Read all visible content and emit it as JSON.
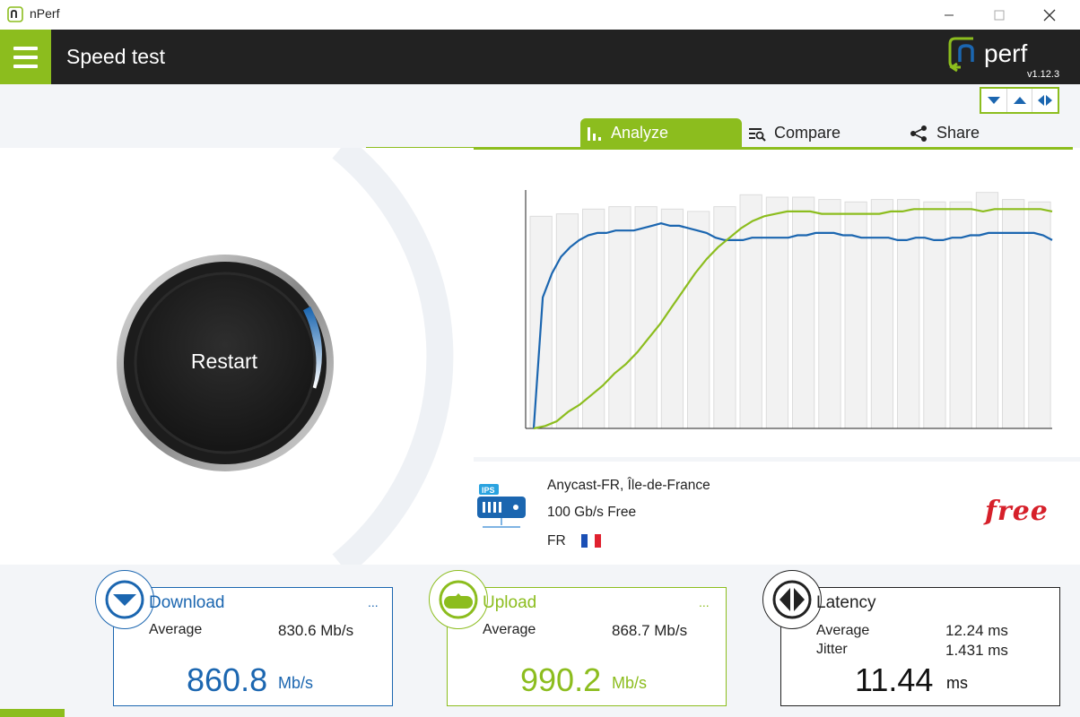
{
  "window": {
    "title": "nPerf",
    "min_icon": "minimize-icon",
    "max_icon": "maximize-icon",
    "close_icon": "close-icon"
  },
  "header": {
    "title": "Speed test",
    "logo_text": "nperf",
    "version": "v1.12.3",
    "menu_icon": "hamburger-icon"
  },
  "view_toggles": [
    "collapse-down-icon",
    "expand-up-icon",
    "split-horizontal-icon"
  ],
  "tabs": [
    {
      "label": "Analyze",
      "icon": "bar-chart-icon",
      "active": true
    },
    {
      "label": "Compare",
      "icon": "compare-list-icon",
      "active": false
    },
    {
      "label": "Share",
      "icon": "share-icon",
      "active": false
    }
  ],
  "gauge": {
    "button_label": "Restart"
  },
  "colors": {
    "accent": "#8cbd1e",
    "download": "#1b66b0",
    "upload": "#8cbd1e",
    "latency": "#222222",
    "isp": "#d6202a"
  },
  "chart_data": {
    "type": "line",
    "series": [
      {
        "key": "download",
        "values": [
          0,
          55,
          65,
          72,
          76,
          79,
          81,
          82,
          82,
          83,
          83,
          83,
          84,
          85,
          86,
          85,
          85,
          84,
          83,
          82,
          80,
          79,
          79,
          79,
          80,
          80,
          80,
          80,
          80,
          81,
          81,
          82,
          82,
          82,
          81,
          81,
          80,
          80,
          80,
          80,
          79,
          79,
          80,
          80,
          79,
          79,
          80,
          80,
          81,
          81,
          82,
          82,
          82,
          82,
          82,
          82,
          81,
          79
        ]
      },
      {
        "key": "upload",
        "values": [
          0,
          1,
          3,
          7,
          10,
          14,
          18,
          23,
          27,
          32,
          38,
          44,
          51,
          58,
          65,
          71,
          76,
          80,
          84,
          87,
          89,
          90,
          91,
          91,
          91,
          90,
          90,
          90,
          90,
          90,
          90,
          91,
          91,
          92,
          92,
          92,
          92,
          92,
          92,
          91,
          92,
          92,
          92,
          92,
          92,
          91
        ]
      }
    ],
    "bars": [
      89,
      90,
      92,
      93,
      93,
      92,
      91,
      93,
      98,
      97,
      97,
      96,
      95,
      96,
      96,
      95,
      95,
      99,
      96,
      95
    ]
  },
  "server": {
    "icon": "server-ips-icon",
    "icon_label": "IPS",
    "name": "Anycast-FR, Île-de-France",
    "speed": "100 Gb/s Free",
    "country": "FR",
    "flag_icon": "france-flag-icon",
    "isp_logo": "free"
  },
  "download": {
    "title": "Download",
    "more": "...",
    "avg_label": "Average",
    "avg_value": "830.6 Mb/s",
    "value": "860.8",
    "unit": "Mb/s",
    "icon": "download-arrow-icon"
  },
  "upload": {
    "title": "Upload",
    "more": "...",
    "avg_label": "Average",
    "avg_value": "868.7 Mb/s",
    "value": "990.2",
    "unit": "Mb/s",
    "icon": "upload-arrow-icon"
  },
  "latency": {
    "title": "Latency",
    "avg_label": "Average",
    "avg_value": "12.24 ms",
    "jitter_label": "Jitter",
    "jitter_value": "1.431 ms",
    "value": "11.44",
    "unit": "ms",
    "icon": "latency-icon"
  }
}
